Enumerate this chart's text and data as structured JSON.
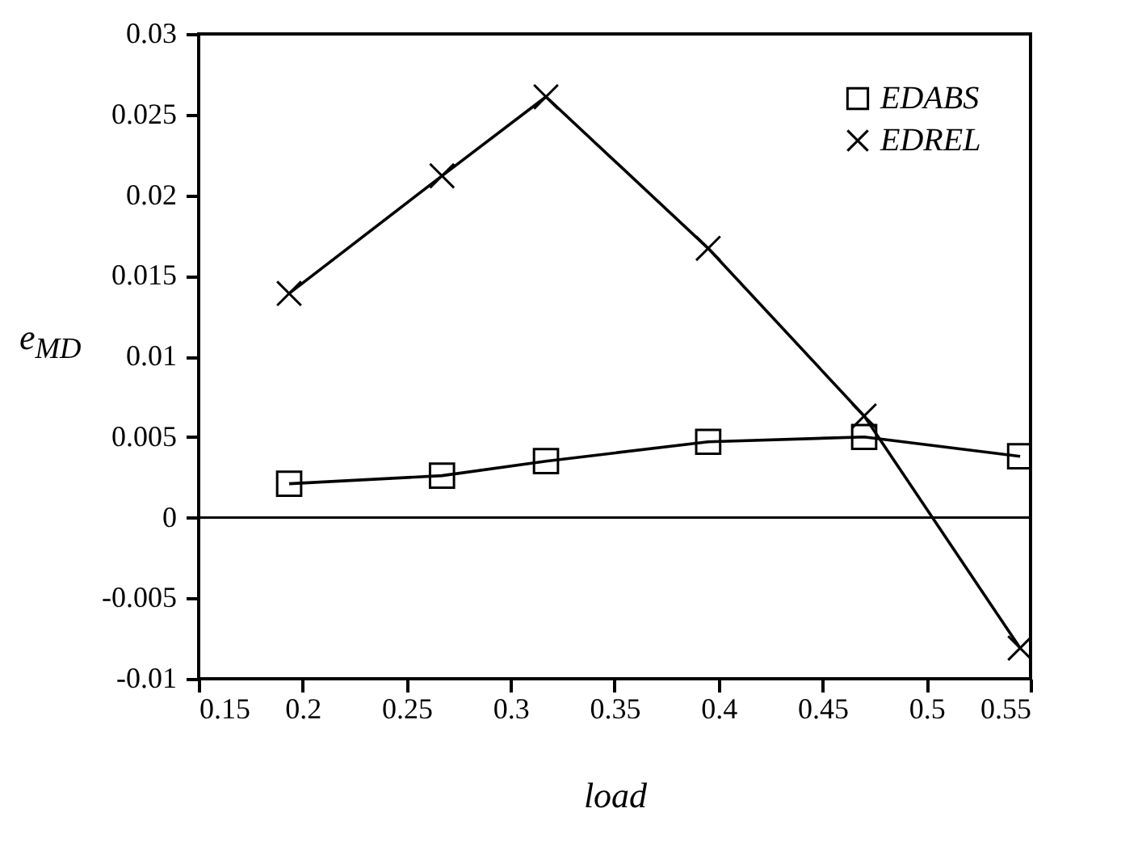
{
  "chart_data": {
    "type": "line",
    "xlabel": "load",
    "ylabel": "e$_{MD}$",
    "x": [
      0.1935,
      0.267,
      0.317,
      0.395,
      0.47,
      0.545
    ],
    "series": [
      {
        "name": "EDABS",
        "color": "#000000",
        "marker": "square",
        "values": [
          0.0021,
          0.0026,
          0.0035,
          0.0047,
          0.005,
          0.0038
        ]
      },
      {
        "name": "EDREL",
        "color": "#000000",
        "marker": "cross",
        "values": [
          0.0139,
          0.0212,
          0.0261,
          0.0167,
          0.0063,
          -0.0081
        ]
      }
    ],
    "xlim": [
      0.15,
      0.55
    ],
    "xticks": [
      0.15,
      0.2,
      0.25,
      0.3,
      0.35,
      0.4,
      0.45,
      0.5,
      0.55
    ],
    "ylim": [
      -0.01,
      0.03
    ],
    "yticks": [
      -0.01,
      -0.005,
      0,
      0.005,
      0.01,
      0.015,
      0.02,
      0.025,
      0.03
    ],
    "ref_lines": [
      {
        "axis": "y",
        "value": 0,
        "color": "#000000"
      }
    ],
    "grid": false,
    "legend": "top right"
  }
}
